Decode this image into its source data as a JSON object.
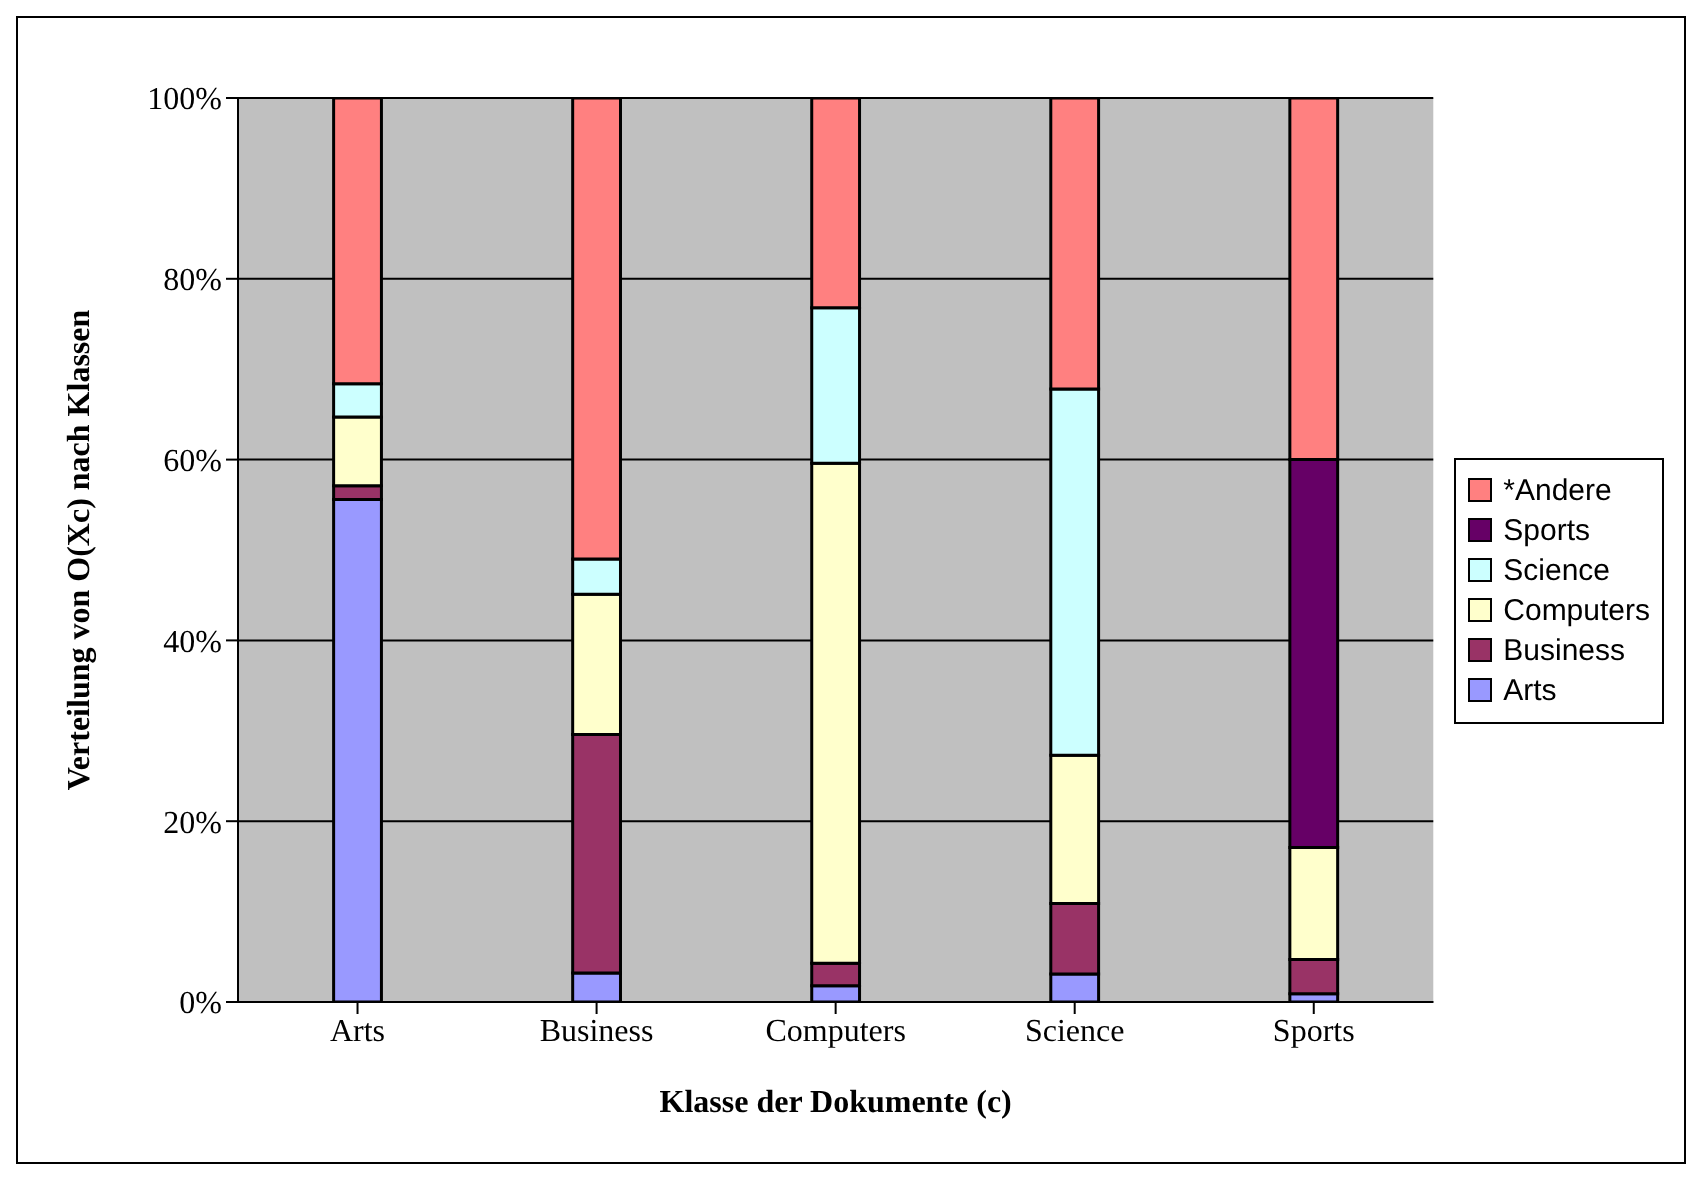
{
  "chart_data": {
    "type": "bar",
    "stacked": true,
    "xlabel": "Klasse der Dokumente (c)",
    "ylabel": "Verteilung von O(Xc) nach Klassen",
    "categories": [
      "Arts",
      "Business",
      "Computers",
      "Science",
      "Sports"
    ],
    "series": [
      {
        "name": "Arts",
        "color": "#9999ff",
        "values": [
          55.6,
          3.2,
          1.8,
          3.1,
          0.9
        ]
      },
      {
        "name": "Business",
        "color": "#993366",
        "values": [
          1.5,
          26.4,
          2.5,
          7.8,
          3.8
        ]
      },
      {
        "name": "Computers",
        "color": "#ffffcc",
        "values": [
          7.6,
          15.5,
          55.3,
          16.4,
          12.4
        ]
      },
      {
        "name": "Science",
        "color": "#ccffff",
        "values": [
          3.7,
          3.9,
          17.2,
          40.5,
          0
        ]
      },
      {
        "name": "Sports",
        "color": "#660066",
        "values": [
          0,
          0,
          0,
          0,
          42.9
        ]
      },
      {
        "name": "*Andere",
        "color": "#ff8080",
        "values": [
          31.6,
          51.0,
          23.2,
          32.2,
          40.0
        ]
      }
    ],
    "ylim": [
      0,
      100
    ],
    "yticks": [
      {
        "value": 0,
        "label": "0%"
      },
      {
        "value": 20,
        "label": "20%"
      },
      {
        "value": 40,
        "label": "40%"
      },
      {
        "value": 60,
        "label": "60%"
      },
      {
        "value": 80,
        "label": "80%"
      },
      {
        "value": 100,
        "label": "100%"
      }
    ],
    "grid": "y",
    "legend": "right"
  }
}
